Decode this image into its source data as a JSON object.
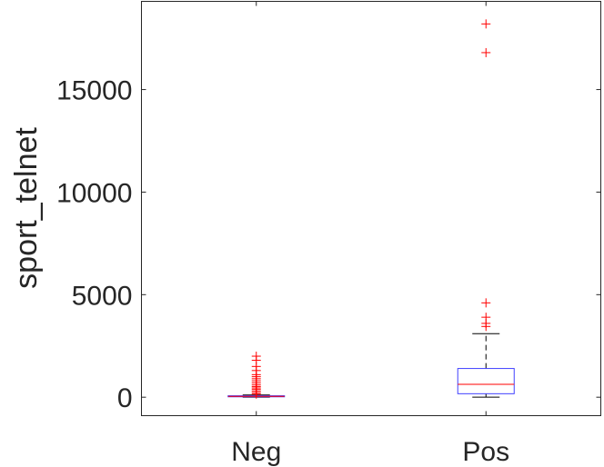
{
  "chart_data": {
    "type": "box",
    "ylabel": "sport_telnet",
    "xlabel": "",
    "title": "",
    "categories": [
      "Neg",
      "Pos"
    ],
    "ylim": [
      -900,
      19300
    ],
    "yticks": [
      0,
      5000,
      10000,
      15000
    ],
    "ytick_labels": [
      "0",
      "5000",
      "10000",
      "15000"
    ],
    "grid": false,
    "box_color": "#4040ff",
    "median_color": "#ff0000",
    "whisker_color": "#000000",
    "outlier_color": "#ff0000",
    "boxes": [
      {
        "category": "Neg",
        "whisker_low": 0,
        "q1": 20,
        "median": 40,
        "q3": 70,
        "whisker_high": 110,
        "outliers": [
          150,
          220,
          300,
          380,
          450,
          520,
          600,
          700,
          800,
          900,
          1000,
          1100,
          1300,
          1500,
          1800,
          2000
        ]
      },
      {
        "category": "Pos",
        "whisker_low": 0,
        "q1": 170,
        "median": 630,
        "q3": 1400,
        "whisker_high": 3100,
        "outliers": [
          3450,
          3600,
          3900,
          4600,
          16800,
          18200
        ]
      }
    ]
  }
}
